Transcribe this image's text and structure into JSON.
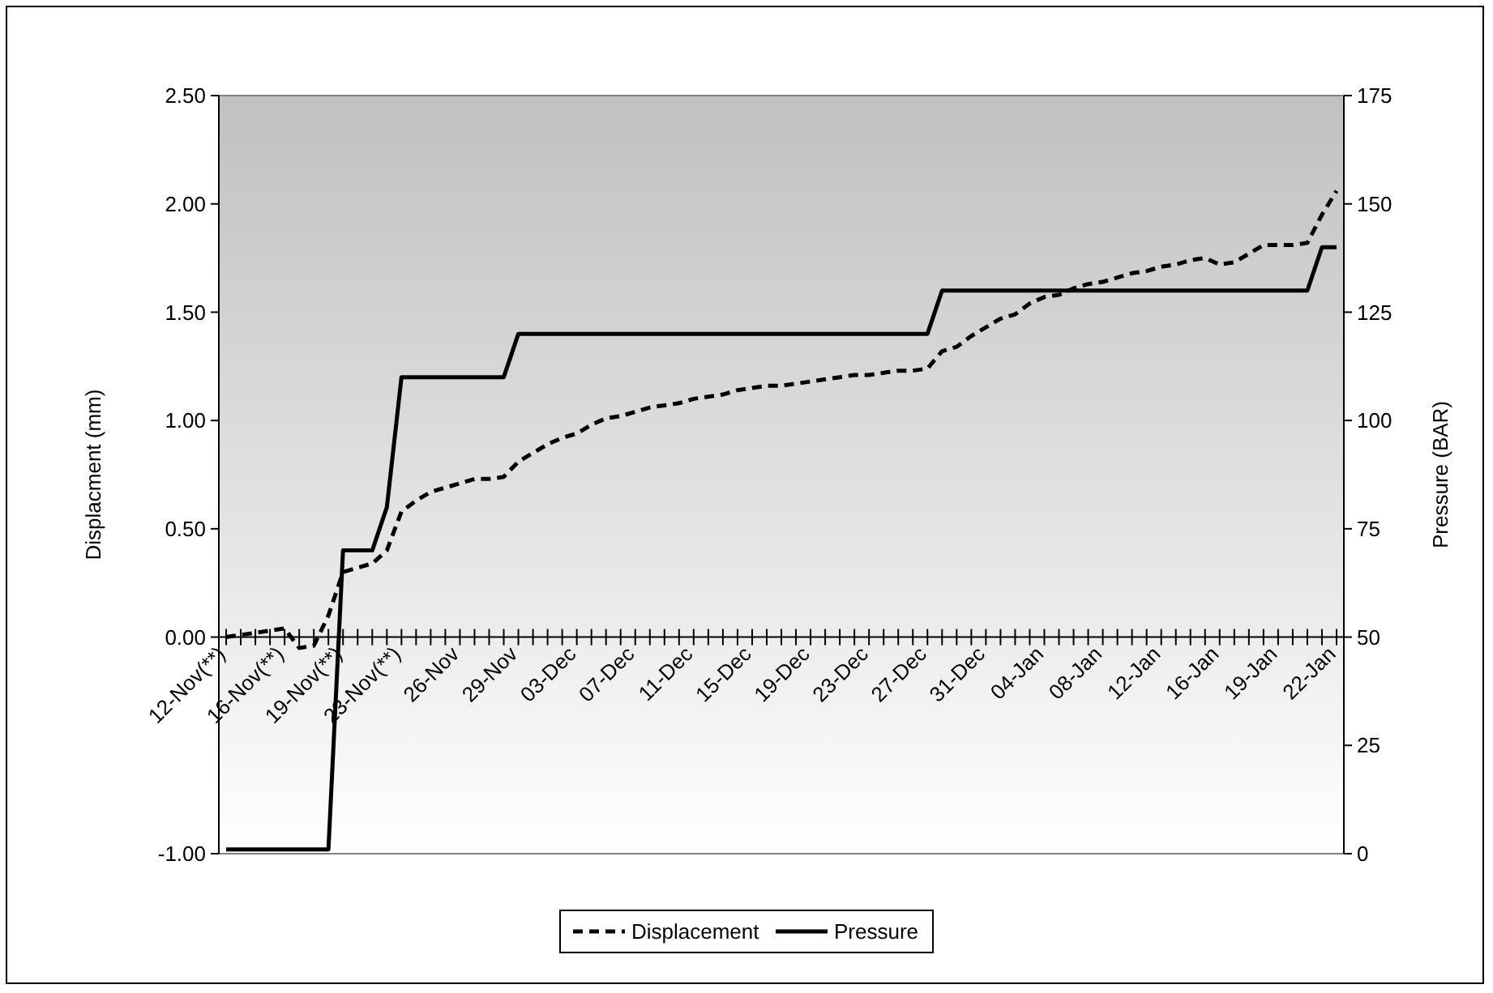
{
  "chart_data": {
    "type": "line",
    "ylabel": "Displacment (mm)",
    "y2label": "Pressure (BAR)",
    "categories": [
      "12-Nov(**)",
      null,
      null,
      null,
      "16-Nov(**)",
      null,
      null,
      null,
      "19-Nov(**)",
      null,
      null,
      null,
      "23-Nov(**)",
      null,
      null,
      null,
      "26-Nov",
      null,
      null,
      null,
      "29-Nov",
      null,
      null,
      null,
      "03-Dec",
      null,
      null,
      null,
      "07-Dec",
      null,
      null,
      null,
      "11-Dec",
      null,
      null,
      null,
      "15-Dec",
      null,
      null,
      null,
      "19-Dec",
      null,
      null,
      null,
      "23-Dec",
      null,
      null,
      null,
      "27-Dec",
      null,
      null,
      null,
      "31-Dec",
      null,
      null,
      null,
      "04-Jan",
      null,
      null,
      null,
      "08-Jan",
      null,
      null,
      null,
      "12-Jan",
      null,
      null,
      null,
      "16-Jan",
      null,
      null,
      null,
      "19-Jan",
      null,
      null,
      null,
      "22-Jan"
    ],
    "series": [
      {
        "name": "Displacement",
        "color": "#000000",
        "line_style": "dashed",
        "values": [
          0.0,
          0.01,
          0.02,
          0.03,
          0.04,
          -0.05,
          -0.04,
          0.1,
          0.3,
          0.32,
          0.34,
          0.4,
          0.58,
          0.63,
          0.67,
          0.69,
          0.71,
          0.73,
          0.73,
          0.74,
          0.81,
          0.85,
          0.89,
          0.92,
          0.94,
          0.98,
          1.01,
          1.02,
          1.04,
          1.06,
          1.07,
          1.08,
          1.1,
          1.11,
          1.12,
          1.14,
          1.15,
          1.16,
          1.16,
          1.17,
          1.18,
          1.19,
          1.2,
          1.21,
          1.21,
          1.22,
          1.23,
          1.23,
          1.24,
          1.32,
          1.34,
          1.39,
          1.43,
          1.47,
          1.49,
          1.54,
          1.57,
          1.58,
          1.61,
          1.63,
          1.64,
          1.66,
          1.68,
          1.69,
          1.71,
          1.72,
          1.74,
          1.75,
          1.72,
          1.73,
          1.77,
          1.81,
          1.81,
          1.81,
          1.82,
          1.95,
          2.06
        ]
      },
      {
        "name": "Pressure",
        "color": "#000000",
        "line_style": "solid",
        "axis": "y2",
        "values": [
          1,
          1,
          1,
          1,
          1,
          1,
          1,
          1,
          70,
          70,
          70,
          80,
          110,
          110,
          110,
          110,
          110,
          110,
          110,
          110,
          120,
          120,
          120,
          120,
          120,
          120,
          120,
          120,
          120,
          120,
          120,
          120,
          120,
          120,
          120,
          120,
          120,
          120,
          120,
          120,
          120,
          120,
          120,
          120,
          120,
          120,
          120,
          120,
          120,
          130,
          130,
          130,
          130,
          130,
          130,
          130,
          130,
          130,
          130,
          130,
          130,
          130,
          130,
          130,
          130,
          130,
          130,
          130,
          130,
          130,
          130,
          130,
          130,
          130,
          130,
          140,
          140
        ]
      }
    ],
    "ylim": [
      -1,
      2.5
    ],
    "yticks": [
      {
        "value": -1,
        "label": "-1.00"
      },
      {
        "value": 0,
        "label": "0.00"
      },
      {
        "value": 0.5,
        "label": "0.50"
      },
      {
        "value": 1,
        "label": "1.00"
      },
      {
        "value": 1.5,
        "label": "1.50"
      },
      {
        "value": 2,
        "label": "2.00"
      },
      {
        "value": 2.5,
        "label": "2.50"
      }
    ],
    "y2lim": [
      0,
      175
    ],
    "y2ticks": [
      0,
      25,
      50,
      75,
      100,
      125,
      150,
      175
    ],
    "grid": false,
    "legend": "bottom"
  }
}
